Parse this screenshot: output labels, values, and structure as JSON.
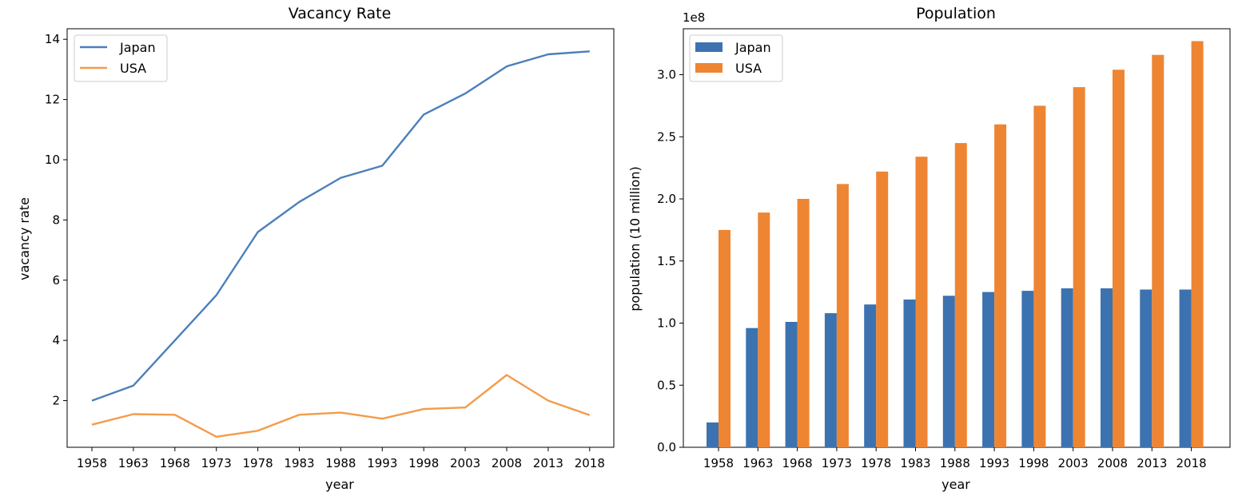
{
  "chart_data": [
    {
      "type": "line",
      "title": "Vacancy Rate",
      "xlabel": "year",
      "ylabel": "vacancy rate",
      "categories": [
        "1958",
        "1963",
        "1968",
        "1973",
        "1978",
        "1983",
        "1988",
        "1993",
        "1998",
        "2003",
        "2008",
        "2013",
        "2018"
      ],
      "ylim": [
        0.45,
        14.35
      ],
      "yticks": [
        2,
        4,
        6,
        8,
        10,
        12,
        14
      ],
      "grid": false,
      "legend": "top-left",
      "series": [
        {
          "name": "Japan",
          "color": "#4c7fba",
          "values": [
            2.0,
            2.5,
            4.0,
            5.5,
            7.6,
            8.6,
            9.4,
            9.8,
            11.5,
            12.2,
            13.1,
            13.5,
            13.6
          ]
        },
        {
          "name": "USA",
          "color": "#f39c4a",
          "values": [
            1.2,
            1.55,
            1.53,
            0.8,
            1.0,
            1.53,
            1.6,
            1.4,
            1.72,
            1.77,
            2.85,
            2.0,
            1.52
          ]
        }
      ]
    },
    {
      "type": "bar",
      "title": "Population",
      "xlabel": "year",
      "ylabel": "population (10 million)",
      "offset_label": "1e8",
      "categories": [
        "1958",
        "1963",
        "1968",
        "1973",
        "1978",
        "1983",
        "1988",
        "1993",
        "1998",
        "2003",
        "2008",
        "2013",
        "2018"
      ],
      "ylim": [
        0,
        3.37
      ],
      "yticks": [
        "0.0",
        "0.5",
        "1.0",
        "1.5",
        "2.0",
        "2.5",
        "3.0"
      ],
      "grid": false,
      "legend": "top-left",
      "series": [
        {
          "name": "Japan",
          "color": "#3c72b0",
          "values": [
            0.2,
            0.96,
            1.01,
            1.08,
            1.15,
            1.19,
            1.22,
            1.25,
            1.26,
            1.28,
            1.28,
            1.27,
            1.27
          ]
        },
        {
          "name": "USA",
          "color": "#ee8533",
          "values": [
            1.75,
            1.89,
            2.0,
            2.12,
            2.22,
            2.34,
            2.45,
            2.6,
            2.75,
            2.9,
            3.04,
            3.16,
            3.27
          ]
        }
      ]
    }
  ]
}
